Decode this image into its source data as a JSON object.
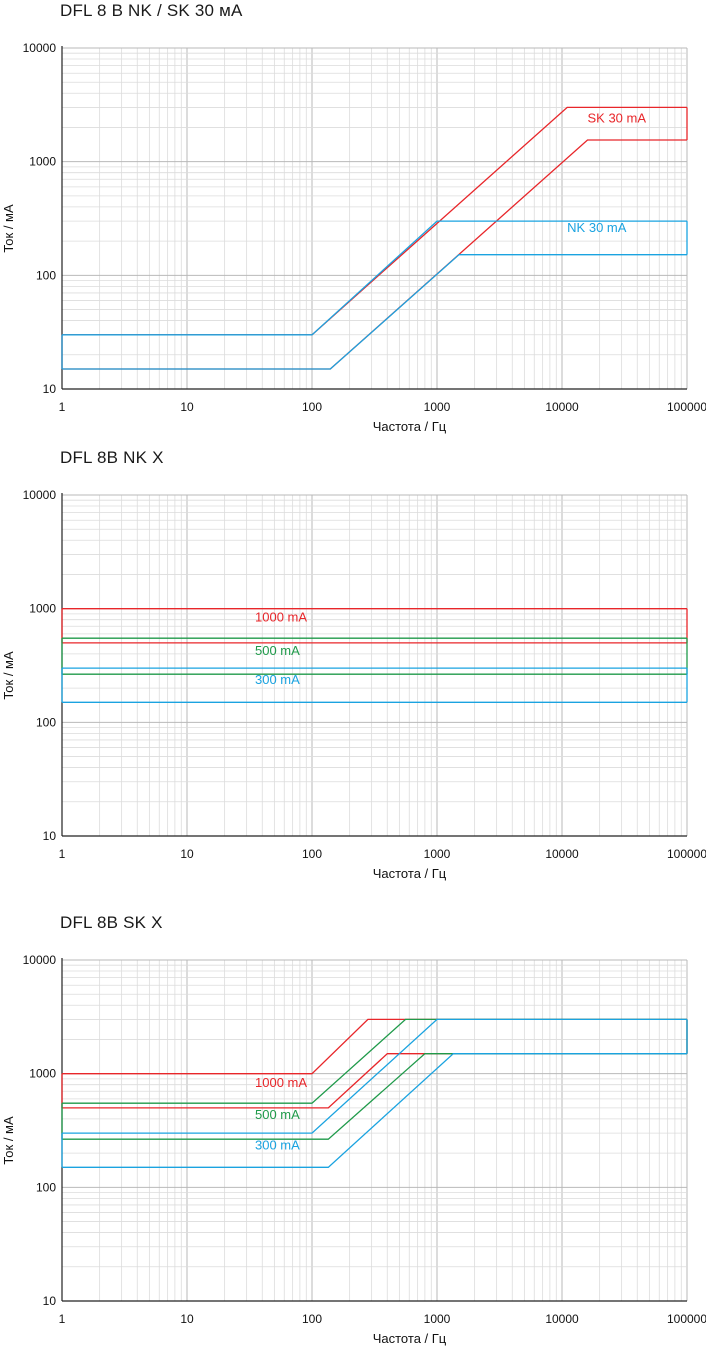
{
  "chart_data": [
    {
      "type": "line",
      "title": "DFL 8  B NK / SK 30 мА",
      "xlabel": "Частота / Гц",
      "ylabel": "Ток / мА",
      "xscale": "log",
      "yscale": "log",
      "xlim": [
        1,
        100000
      ],
      "ylim": [
        10,
        10000
      ],
      "xticks": [
        "1",
        "10",
        "100",
        "1000",
        "10000",
        "100000"
      ],
      "yticks": [
        "10",
        "100",
        "1000",
        "10000"
      ],
      "grid": true,
      "series": [
        {
          "name": "SK 30 mA",
          "color": "#e8262a",
          "label_at": [
            16000,
            2200
          ],
          "upper": {
            "x": [
              1,
              100,
              11000,
              100000
            ],
            "y": [
              30,
              30,
              3000,
              3000
            ]
          },
          "lower": {
            "x": [
              1,
              140,
              16000,
              100000
            ],
            "y": [
              15,
              15,
              1550,
              1550
            ]
          }
        },
        {
          "name": "NK 30 mA",
          "color": "#1aa3e0",
          "label_at": [
            11000,
            240
          ],
          "upper": {
            "x": [
              1,
              100,
              1000,
              100000
            ],
            "y": [
              30,
              30,
              300,
              300
            ]
          },
          "lower": {
            "x": [
              1,
              140,
              1500,
              100000
            ],
            "y": [
              15,
              15,
              152,
              152
            ]
          }
        }
      ]
    },
    {
      "type": "line",
      "title": "DFL 8B NK X",
      "xlabel": "Частота / Гц",
      "ylabel": "Ток / мА",
      "xscale": "log",
      "yscale": "log",
      "xlim": [
        1,
        100000
      ],
      "ylim": [
        10,
        10000
      ],
      "xticks": [
        "1",
        "10",
        "100",
        "1000",
        "10000",
        "100000"
      ],
      "yticks": [
        "10",
        "100",
        "1000",
        "10000"
      ],
      "grid": true,
      "series": [
        {
          "name": "1000 mA",
          "color": "#e8262a",
          "label_at": [
            35,
            770
          ],
          "upper": {
            "x": [
              1,
              100000
            ],
            "y": [
              1000,
              1000
            ]
          },
          "lower": {
            "x": [
              1,
              100000
            ],
            "y": [
              500,
              500
            ]
          }
        },
        {
          "name": "500 mA",
          "color": "#1f9a4a",
          "label_at": [
            35,
            390
          ],
          "upper": {
            "x": [
              1,
              100000
            ],
            "y": [
              550,
              550
            ]
          },
          "lower": {
            "x": [
              1,
              100000
            ],
            "y": [
              265,
              265
            ]
          }
        },
        {
          "name": "300 mA",
          "color": "#1aa3e0",
          "label_at": [
            35,
            218
          ],
          "upper": {
            "x": [
              1,
              100000
            ],
            "y": [
              300,
              300
            ]
          },
          "lower": {
            "x": [
              1,
              100000
            ],
            "y": [
              150,
              150
            ]
          }
        }
      ]
    },
    {
      "type": "line",
      "title": "DFL 8B SK X",
      "xlabel": "Частота / Гц",
      "ylabel": "Ток / мА",
      "xscale": "log",
      "yscale": "log",
      "xlim": [
        1,
        100000
      ],
      "ylim": [
        10,
        10000
      ],
      "xticks": [
        "1",
        "10",
        "100",
        "1000",
        "10000",
        "100000"
      ],
      "yticks": [
        "10",
        "100",
        "1000",
        "10000"
      ],
      "grid": true,
      "series": [
        {
          "name": "1000 mA",
          "color": "#e8262a",
          "label_at": [
            35,
            760
          ],
          "upper": {
            "x": [
              1,
              100,
              280,
              100000
            ],
            "y": [
              1000,
              1000,
              3000,
              3000
            ]
          },
          "lower": {
            "x": [
              1,
              135,
              400,
              100000
            ],
            "y": [
              500,
              500,
              1500,
              1500
            ]
          }
        },
        {
          "name": "500 mA",
          "color": "#1f9a4a",
          "label_at": [
            35,
            400
          ],
          "upper": {
            "x": [
              1,
              100,
              560,
              100000
            ],
            "y": [
              550,
              550,
              3000,
              3000
            ]
          },
          "lower": {
            "x": [
              1,
              135,
              800,
              100000
            ],
            "y": [
              265,
              265,
              1500,
              1500
            ]
          }
        },
        {
          "name": "300 mA",
          "color": "#1aa3e0",
          "label_at": [
            35,
            215
          ],
          "upper": {
            "x": [
              1,
              100,
              1000,
              100000
            ],
            "y": [
              300,
              300,
              3000,
              3000
            ]
          },
          "lower": {
            "x": [
              1,
              135,
              1350,
              100000
            ],
            "y": [
              150,
              150,
              1500,
              1500
            ]
          }
        }
      ]
    }
  ]
}
